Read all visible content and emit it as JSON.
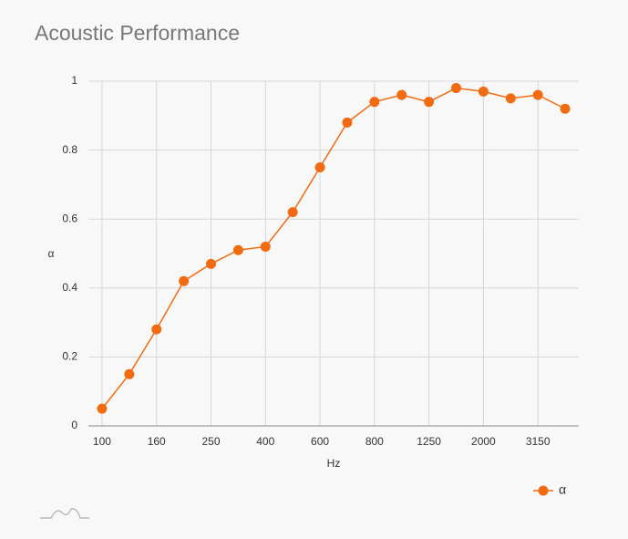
{
  "chart_data": {
    "type": "line",
    "title": "Acoustic Performance",
    "x_label": "Hz",
    "y_label": "α",
    "categories": [
      "100",
      null,
      "160",
      null,
      "250",
      null,
      "400",
      null,
      "600",
      null,
      "800",
      null,
      "1250",
      null,
      "2000",
      null,
      "3150",
      null
    ],
    "series": [
      {
        "name": "α",
        "color": "#f26b10",
        "values": [
          0.05,
          0.15,
          0.28,
          0.42,
          0.47,
          0.51,
          0.52,
          0.62,
          0.75,
          0.88,
          0.94,
          0.96,
          0.94,
          0.98,
          0.97,
          0.95,
          0.96,
          0.92
        ]
      }
    ],
    "ylim": [
      0,
      1
    ],
    "yticks": [
      0,
      0.2,
      0.4,
      0.6,
      0.8,
      1
    ],
    "grid": true,
    "legend": "bottom-right"
  }
}
